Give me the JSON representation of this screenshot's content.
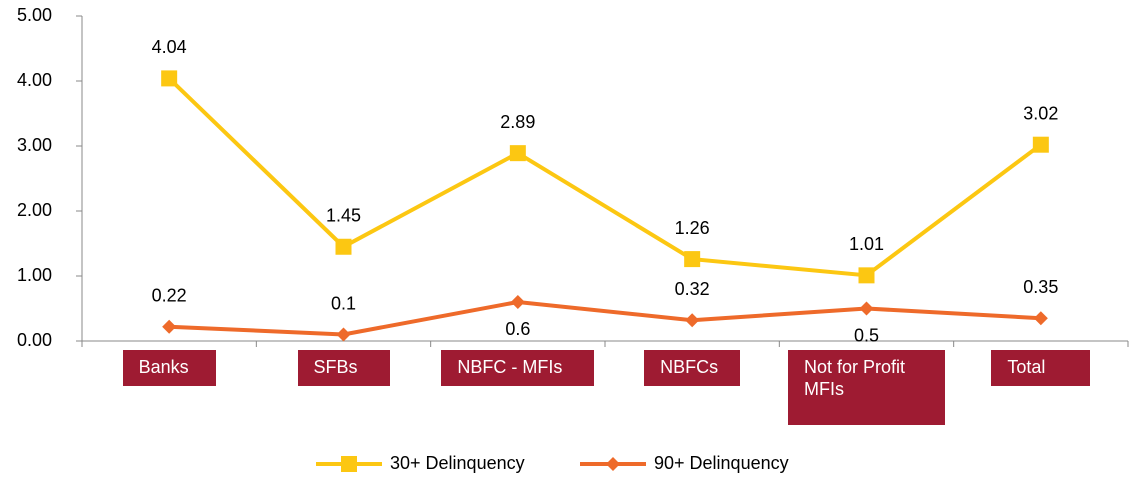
{
  "chart_data": {
    "type": "line",
    "categories": [
      "Banks",
      "SFBs",
      "NBFC - MFIs",
      "NBFCs",
      "Not for Profit MFIs",
      "Total"
    ],
    "series": [
      {
        "name": "30+ Delinquency",
        "color": "#fcc712",
        "marker": "square",
        "values": [
          4.04,
          1.45,
          2.89,
          1.26,
          1.01,
          3.02
        ]
      },
      {
        "name": "90+ Delinquency",
        "color": "#ee6a2a",
        "marker": "diamond",
        "values": [
          0.22,
          0.1,
          0.6,
          0.32,
          0.5,
          0.35
        ]
      }
    ],
    "ylim": [
      0,
      5
    ],
    "yticks": [
      {
        "value": 0,
        "label": "0.00"
      },
      {
        "value": 1,
        "label": "1.00"
      },
      {
        "value": 2,
        "label": "2.00"
      },
      {
        "value": 3,
        "label": "3.00"
      },
      {
        "value": 4,
        "label": "4.00"
      },
      {
        "value": 5,
        "label": "5.00"
      }
    ],
    "legend": "bottom"
  }
}
